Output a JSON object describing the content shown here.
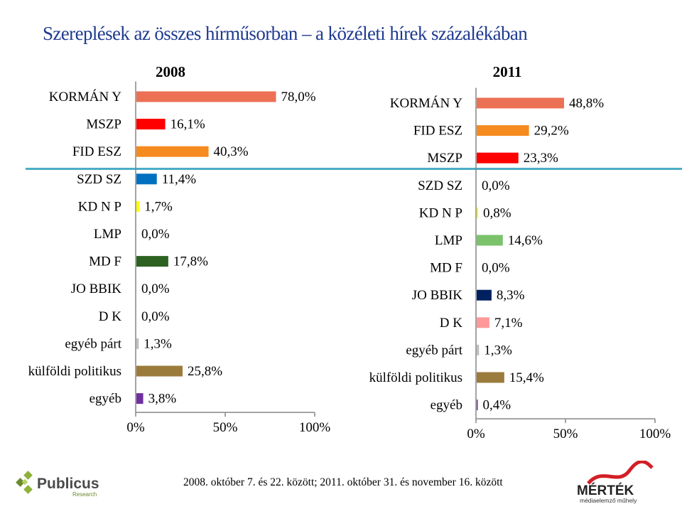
{
  "title": "Szereplések az összes hírműsorban – a közéleti hírek százalékában",
  "footer": "2008. október 7. és 22. között; 2011. október 31. és november 16. között",
  "logos": {
    "publicus": "Publicus",
    "publicus_sub": "Research",
    "mertek": "MÉRTÉK",
    "mertek_sub": "médiaelemző műhely"
  },
  "chart_data": [
    {
      "type": "bar",
      "orientation": "horizontal",
      "title": "2008",
      "xlim": [
        0,
        100
      ],
      "xticks": [
        "0%",
        "50%",
        "100%"
      ],
      "categories": [
        "KORMÁNY",
        "MSZP",
        "FIDESZ",
        "SZDSZ",
        "KDNP",
        "LMP",
        "MDF",
        "JOBBIK",
        "DK",
        "egyéb párt",
        "külföldi politikus",
        "egyéb"
      ],
      "display_categories": [
        "KORMÁN Y",
        "MSZP",
        "FID ESZ",
        "SZD SZ",
        "KD N P",
        "LMP",
        "MD F",
        "JO BBIK",
        "D K",
        "egyéb párt",
        "külföldi politikus",
        "egyéb"
      ],
      "values": [
        78.0,
        16.1,
        40.3,
        11.4,
        1.7,
        0.0,
        17.8,
        0.0,
        0.0,
        1.3,
        25.8,
        3.8
      ],
      "labels": [
        "78,0%",
        "16,1%",
        "40,3%",
        "11,4%",
        "1,7%",
        "0,0%",
        "17,8%",
        "0,0%",
        "0,0%",
        "1,3%",
        "25,8%",
        "3,8%"
      ],
      "colors": [
        "#ec7154",
        "#ff0000",
        "#f58a1f",
        "#0070c0",
        "#ffff00",
        "#7ac36a",
        "#2c6122",
        "#002060",
        "#ff9999",
        "#bfbfbf",
        "#9b7b3c",
        "#7030a0"
      ]
    },
    {
      "type": "bar",
      "orientation": "horizontal",
      "title": "2011",
      "xlim": [
        0,
        100
      ],
      "xticks": [
        "0%",
        "50%",
        "100%"
      ],
      "categories": [
        "KORMÁNY",
        "FIDESZ",
        "MSZP",
        "SZDSZ",
        "KDNP",
        "LMP",
        "MDF",
        "JOBBIK",
        "DK",
        "egyéb párt",
        "külföldi politikus",
        "egyéb"
      ],
      "display_categories": [
        "KORMÁN Y",
        "FID ESZ",
        "MSZP",
        "SZD SZ",
        "KD N P",
        "LMP",
        "MD F",
        "JO BBIK",
        "D K",
        "egyéb párt",
        "külföldi politikus",
        "egyéb"
      ],
      "values": [
        48.8,
        29.2,
        23.3,
        0.0,
        0.8,
        14.6,
        0.0,
        8.3,
        7.1,
        1.3,
        15.4,
        0.4
      ],
      "labels": [
        "48,8%",
        "29,2%",
        "23,3%",
        "0,0%",
        "0,8%",
        "14,6%",
        "0,0%",
        "8,3%",
        "7,1%",
        "1,3%",
        "15,4%",
        "0,4%"
      ],
      "colors": [
        "#ec7154",
        "#f58a1f",
        "#ff0000",
        "#0070c0",
        "#ffff00",
        "#7ac36a",
        "#2c6122",
        "#002060",
        "#ff9999",
        "#bfbfbf",
        "#9b7b3c",
        "#7030a0"
      ]
    }
  ]
}
